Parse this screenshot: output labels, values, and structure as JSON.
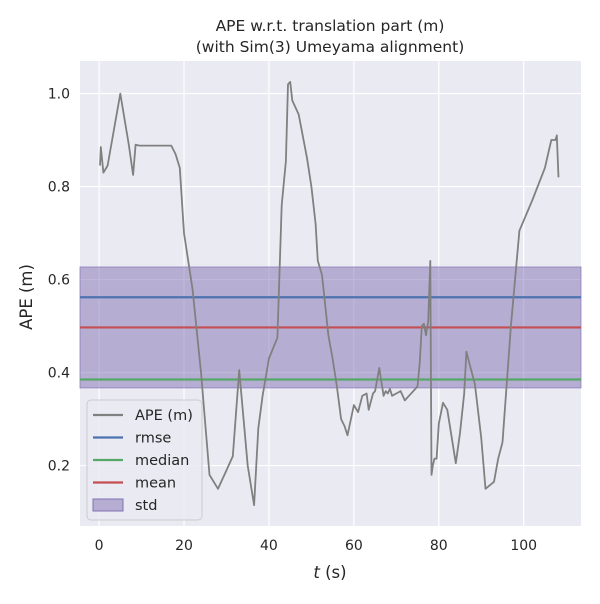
{
  "chart_data": {
    "type": "line",
    "title": "APE w.r.t. translation part (m)",
    "subtitle": "(with Sim(3) Umeyama alignment)",
    "xlabel": "t (s)",
    "xlabel_italic_part": "t",
    "xlabel_rest": " (s)",
    "ylabel": "APE (m)",
    "xlim": [
      -4.5,
      113.5
    ],
    "ylim": [
      0.07,
      1.07
    ],
    "x_ticks": [
      0,
      20,
      40,
      60,
      80,
      100
    ],
    "x_tick_labels": [
      "0",
      "20",
      "40",
      "60",
      "80",
      "100"
    ],
    "y_ticks": [
      0.2,
      0.4,
      0.6,
      0.8,
      1.0
    ],
    "y_tick_labels": [
      "0.2",
      "0.4",
      "0.6",
      "0.8",
      "1.0"
    ],
    "grid": true,
    "background": "#eaeaf2",
    "legend_position": "lower-left",
    "series": [
      {
        "name": "APE (m)",
        "color": "#808080",
        "x": [
          0.2,
          0.4,
          1.0,
          2.0,
          5.0,
          7.0,
          8.0,
          8.6,
          9.5,
          12.0,
          17.0,
          18.0,
          19.0,
          20.0,
          22.0,
          24.0,
          26.0,
          28.0,
          30.0,
          31.5,
          33.0,
          35.0,
          36.5,
          37.5,
          38.5,
          40.0,
          42.0,
          43.0,
          44.0,
          44.5,
          45.0,
          45.5,
          47.0,
          49.0,
          50.0,
          51.0,
          51.5,
          52.5,
          54.0,
          55.0,
          56.0,
          57.0,
          57.8,
          58.5,
          60.0,
          61.0,
          62.0,
          63.0,
          63.5,
          64.5,
          65.0,
          66.0,
          66.5,
          67.0,
          67.5,
          68.0,
          68.5,
          69.0,
          70.0,
          71.0,
          72.0,
          73.0,
          75.0,
          75.5,
          76.0,
          76.5,
          77.0,
          77.5,
          78.0,
          78.3,
          78.6,
          79.0,
          79.5,
          80.0,
          81.0,
          82.0,
          84.0,
          85.0,
          86.0,
          86.5,
          87.5,
          88.5,
          90.0,
          91.0,
          93.0,
          94.0,
          95.0,
          97.0,
          99.0,
          102.0,
          105.0,
          106.5,
          107.5,
          107.8,
          108.2
        ],
        "values": [
          0.845,
          0.885,
          0.83,
          0.845,
          1.0,
          0.89,
          0.825,
          0.89,
          0.888,
          0.888,
          0.888,
          0.87,
          0.84,
          0.7,
          0.58,
          0.4,
          0.18,
          0.15,
          0.19,
          0.22,
          0.405,
          0.2,
          0.115,
          0.28,
          0.35,
          0.43,
          0.475,
          0.76,
          0.855,
          1.02,
          1.025,
          0.985,
          0.955,
          0.86,
          0.8,
          0.72,
          0.64,
          0.61,
          0.48,
          0.43,
          0.37,
          0.3,
          0.285,
          0.265,
          0.33,
          0.315,
          0.35,
          0.355,
          0.32,
          0.355,
          0.36,
          0.41,
          0.38,
          0.35,
          0.36,
          0.355,
          0.365,
          0.35,
          0.355,
          0.36,
          0.34,
          0.35,
          0.37,
          0.42,
          0.5,
          0.505,
          0.48,
          0.51,
          0.64,
          0.18,
          0.2,
          0.215,
          0.215,
          0.29,
          0.335,
          0.32,
          0.205,
          0.27,
          0.355,
          0.445,
          0.41,
          0.375,
          0.26,
          0.15,
          0.165,
          0.215,
          0.25,
          0.5,
          0.705,
          0.77,
          0.84,
          0.9,
          0.9,
          0.91,
          0.82
        ]
      },
      {
        "name": "rmse",
        "color": "#4c72b0",
        "constant": 0.562
      },
      {
        "name": "median",
        "color": "#55a868",
        "constant": 0.385
      },
      {
        "name": "mean",
        "color": "#c44e52",
        "constant": 0.497
      }
    ],
    "std_band": {
      "name": "std",
      "lower": 0.367,
      "upper": 0.627,
      "fill": "#8172b2",
      "opacity": 0.5
    },
    "legend": [
      {
        "label": "APE (m)",
        "kind": "line",
        "color": "#808080"
      },
      {
        "label": "rmse",
        "kind": "line",
        "color": "#4c72b0"
      },
      {
        "label": "median",
        "kind": "line",
        "color": "#55a868"
      },
      {
        "label": "mean",
        "kind": "line",
        "color": "#c44e52"
      },
      {
        "label": "std",
        "kind": "patch",
        "color": "#8172b2"
      }
    ]
  }
}
